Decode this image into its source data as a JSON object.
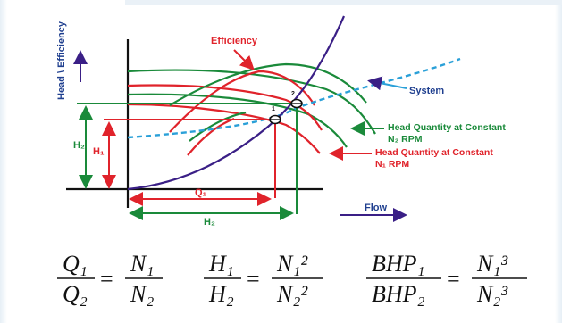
{
  "labels": {
    "y_axis": "Head \\ Efficiency",
    "x_axis": "Flow",
    "efficiency": "Efficiency",
    "system": "System",
    "point1": "1",
    "point2": "2",
    "h2": "H₂",
    "h1": "H₁",
    "q1": "Q₁",
    "h2_bottom": "H₂",
    "green_legend_line1": "Head Quantity at Constant",
    "green_legend_line2": "N₂ RPM",
    "red_legend_line1": "Head Quantity at Constant",
    "red_legend_line2": "N₁ RPM"
  },
  "equations": [
    {
      "num": "Q₁",
      "den": "Q₂",
      "eq": "=",
      "num2": "N₁",
      "den2": "N₂"
    },
    {
      "num": "H₁",
      "den": "H₂",
      "eq": "=",
      "num2": "N₁²",
      "den2": "N₂²"
    },
    {
      "num": "BHP₁",
      "den": "BHP₂",
      "eq": "=",
      "num2": "N₁³",
      "den2": "N₂³"
    }
  ],
  "colors": {
    "green": "#1a8a3a",
    "red": "#e0232b",
    "purple": "#3a1f86",
    "system": "#2aa0d8",
    "text_blue": "#1f3f8f",
    "axis": "#111111"
  }
}
